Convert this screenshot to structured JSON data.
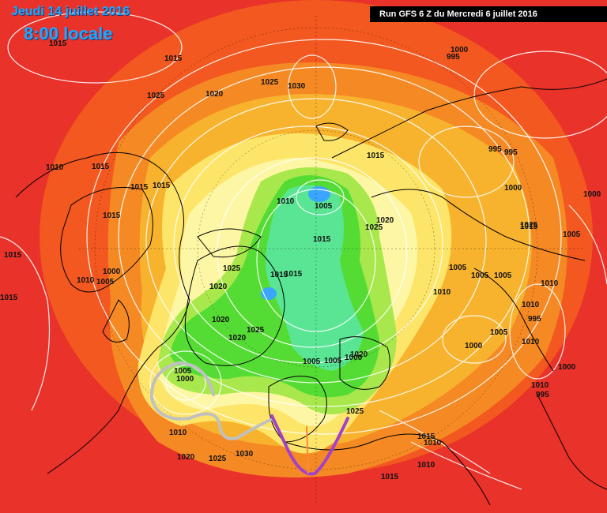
{
  "header": {
    "date_label": "Jeudi 14 juillet 2016",
    "hour_label": "8:00 locale",
    "run_label": "Run GFS 6 Z du Mercredi 6 juillet 2016"
  },
  "colors": {
    "background_red": "#e8322a",
    "outer_orange": "#f2581f",
    "orange": "#f58a25",
    "amber": "#f8b32e",
    "yellow": "#fde56a",
    "pale_yellow": "#fdf6a4",
    "light_green": "#a8e84c",
    "green": "#55dc34",
    "cyan_green": "#5ae6a6",
    "blue": "#3aa6ff",
    "isobar": "#ffffff",
    "coast": "#000000",
    "arrow_gray": "#c0c0c0",
    "arrow_purple": "#a541c8"
  },
  "isobar_labels": [
    "1015",
    "1025",
    "1030",
    "1015",
    "1025",
    "1020",
    "1010",
    "1015",
    "1015",
    "1015",
    "1010",
    "1015",
    "1005",
    "1025",
    "1020",
    "1015",
    "1025",
    "1020",
    "1010",
    "1005",
    "1000",
    "1000",
    "1005",
    "1015",
    "1005",
    "1005",
    "1015",
    "1025",
    "1020",
    "1020",
    "1025",
    "1015",
    "1015",
    "995",
    "995",
    "1000",
    "1000",
    "1015",
    "1010",
    "1020",
    "1025",
    "1015",
    "1005",
    "1005",
    "1010",
    "1005",
    "995",
    "1010",
    "1000",
    "1010",
    "1000",
    "1010",
    "995",
    "995",
    "1005",
    "1000",
    "1020",
    "1025",
    "1030",
    "1015",
    "1015",
    "1010",
    "1010",
    "1010",
    "1005",
    "1000"
  ]
}
